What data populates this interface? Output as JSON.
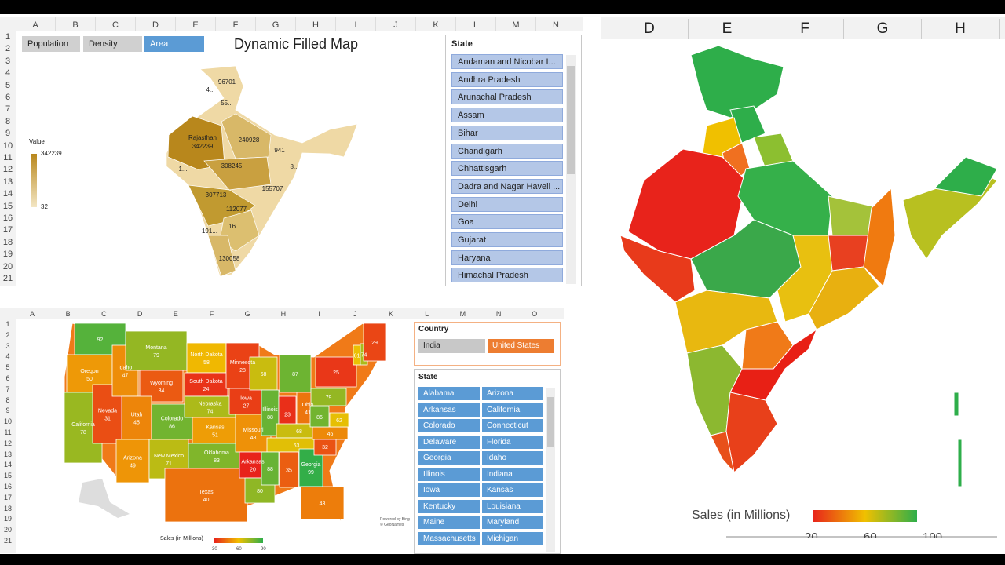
{
  "excel_top": {
    "columns": [
      "A",
      "B",
      "C",
      "D",
      "E",
      "F",
      "G",
      "H",
      "I",
      "J",
      "K",
      "L",
      "M",
      "N"
    ],
    "rows": [
      1,
      2,
      3,
      4,
      5,
      6,
      7,
      8,
      9,
      10,
      11,
      12,
      13,
      14,
      15,
      16,
      17,
      18,
      19,
      20,
      21
    ],
    "buttons": [
      "Population",
      "Density",
      "Area"
    ],
    "title": "Dynamic Filled Map",
    "legend": {
      "title": "Value",
      "max": "342239",
      "min": "32"
    },
    "map_labels": [
      "96701",
      "4...",
      "55...",
      "Rajasthan",
      "342239",
      "240928",
      "941",
      "308245",
      "8...",
      "1...",
      "155707",
      "307713",
      "112077",
      "16...",
      "191...",
      "130058"
    ],
    "slicer": {
      "title": "State",
      "items": [
        "Andaman and Nicobar I...",
        "Andhra Pradesh",
        "Arunachal Pradesh",
        "Assam",
        "Bihar",
        "Chandigarh",
        "Chhattisgarh",
        "Dadra and Nagar Haveli ...",
        "Delhi",
        "Goa",
        "Gujarat",
        "Haryana",
        "Himachal Pradesh"
      ]
    }
  },
  "excel_bottom": {
    "columns": [
      "A",
      "B",
      "C",
      "D",
      "E",
      "F",
      "G",
      "H",
      "I",
      "J",
      "K",
      "L",
      "M",
      "N",
      "O"
    ],
    "rows": [
      1,
      2,
      3,
      4,
      5,
      6,
      7,
      8,
      9,
      10,
      11,
      12,
      13,
      14,
      15,
      16,
      17,
      18,
      19,
      20,
      21
    ],
    "map_labels": [
      {
        "value": 92
      },
      {
        "name": "Oregon",
        "value": 50
      },
      {
        "name": "California",
        "value": 78
      },
      {
        "name": "Nevada",
        "value": 31
      },
      {
        "name": "Idaho",
        "value": 47
      },
      {
        "name": "Montana",
        "value": 79
      },
      {
        "name": "Wyoming",
        "value": 34
      },
      {
        "name": "Utah",
        "value": 45
      },
      {
        "name": "Arizona",
        "value": 49
      },
      {
        "name": "Colorado",
        "value": 86
      },
      {
        "name": "New Mexico",
        "value": 71
      },
      {
        "name": "North Dakota",
        "value": 58
      },
      {
        "name": "South Dakota",
        "value": 24
      },
      {
        "name": "Nebraska",
        "value": 74
      },
      {
        "name": "Kansas",
        "value": 51
      },
      {
        "name": "Oklahoma",
        "value": 83
      },
      {
        "name": "Texas",
        "value": 40
      },
      {
        "name": "Minnesota",
        "value": 28
      },
      {
        "name": "Iowa",
        "value": 27
      },
      {
        "name": "Missouri",
        "value": 48
      },
      {
        "name": "Arkansas",
        "value": 20
      },
      {
        "value": 80
      },
      {
        "value": 68
      },
      {
        "name": "Illinois",
        "value": 88
      },
      {
        "value": 87
      },
      {
        "value": 23
      },
      {
        "name": "Ohio",
        "value": 41
      },
      {
        "value": 68
      },
      {
        "value": 63
      },
      {
        "value": 88
      },
      {
        "value": 35
      },
      {
        "name": "Georgia",
        "value": 99
      },
      {
        "value": 43
      },
      {
        "value": 32
      },
      {
        "value": 46
      },
      {
        "value": 86
      },
      {
        "value": 62
      },
      {
        "value": 79
      },
      {
        "value": 25
      },
      {
        "value": 61
      },
      {
        "value": 74
      },
      {
        "value": 29
      }
    ],
    "country_slicer": {
      "title": "Country",
      "items": [
        "India",
        "United States"
      ]
    },
    "state_slicer": {
      "title": "State",
      "items": [
        "Alabama",
        "Arizona",
        "Arkansas",
        "California",
        "Colorado",
        "Connecticut",
        "Delaware",
        "Florida",
        "Georgia",
        "Idaho",
        "Illinois",
        "Indiana",
        "Iowa",
        "Kansas",
        "Kentucky",
        "Louisiana",
        "Maine",
        "Maryland",
        "Massachusetts",
        "Michigan"
      ]
    },
    "legend": {
      "title": "Sales (in Millions)",
      "ticks": [
        "30",
        "60",
        "90"
      ]
    },
    "attribution": [
      "Powered by Bing",
      "© GeoNames"
    ]
  },
  "excel_right": {
    "columns": [
      "D",
      "E",
      "F",
      "G",
      "H"
    ],
    "legend": {
      "title": "Sales (in Millions)",
      "ticks": [
        "20",
        "60",
        "100"
      ]
    }
  }
}
